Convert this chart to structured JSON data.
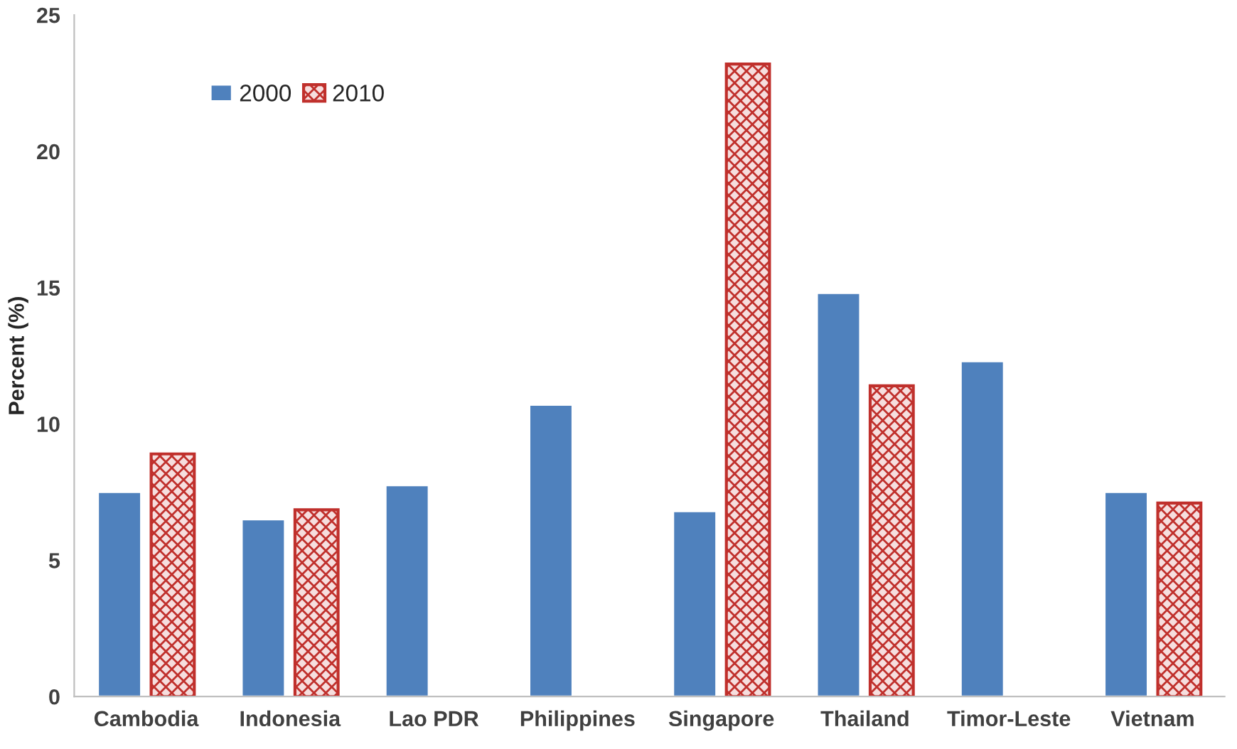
{
  "chart_data": {
    "type": "bar",
    "ylabel": "Percent (%)",
    "categories": [
      "Cambodia",
      "Indonesia",
      "Lao PDR",
      "Philippines",
      "Singapore",
      "Thailand",
      "Timor-Leste",
      "Vietnam"
    ],
    "series": [
      {
        "name": "2000",
        "color": "#4f81bd",
        "values": [
          7.5,
          6.5,
          7.75,
          10.7,
          6.8,
          14.8,
          12.3,
          7.5
        ]
      },
      {
        "name": "2010",
        "color": "#c0302c",
        "values": [
          8.9,
          6.85,
          null,
          null,
          23.2,
          11.4,
          null,
          7.1
        ]
      }
    ],
    "ylim": [
      0,
      25
    ],
    "yticks": [
      0,
      5,
      10,
      15,
      20,
      25
    ],
    "grid": false,
    "legend": "top left"
  }
}
